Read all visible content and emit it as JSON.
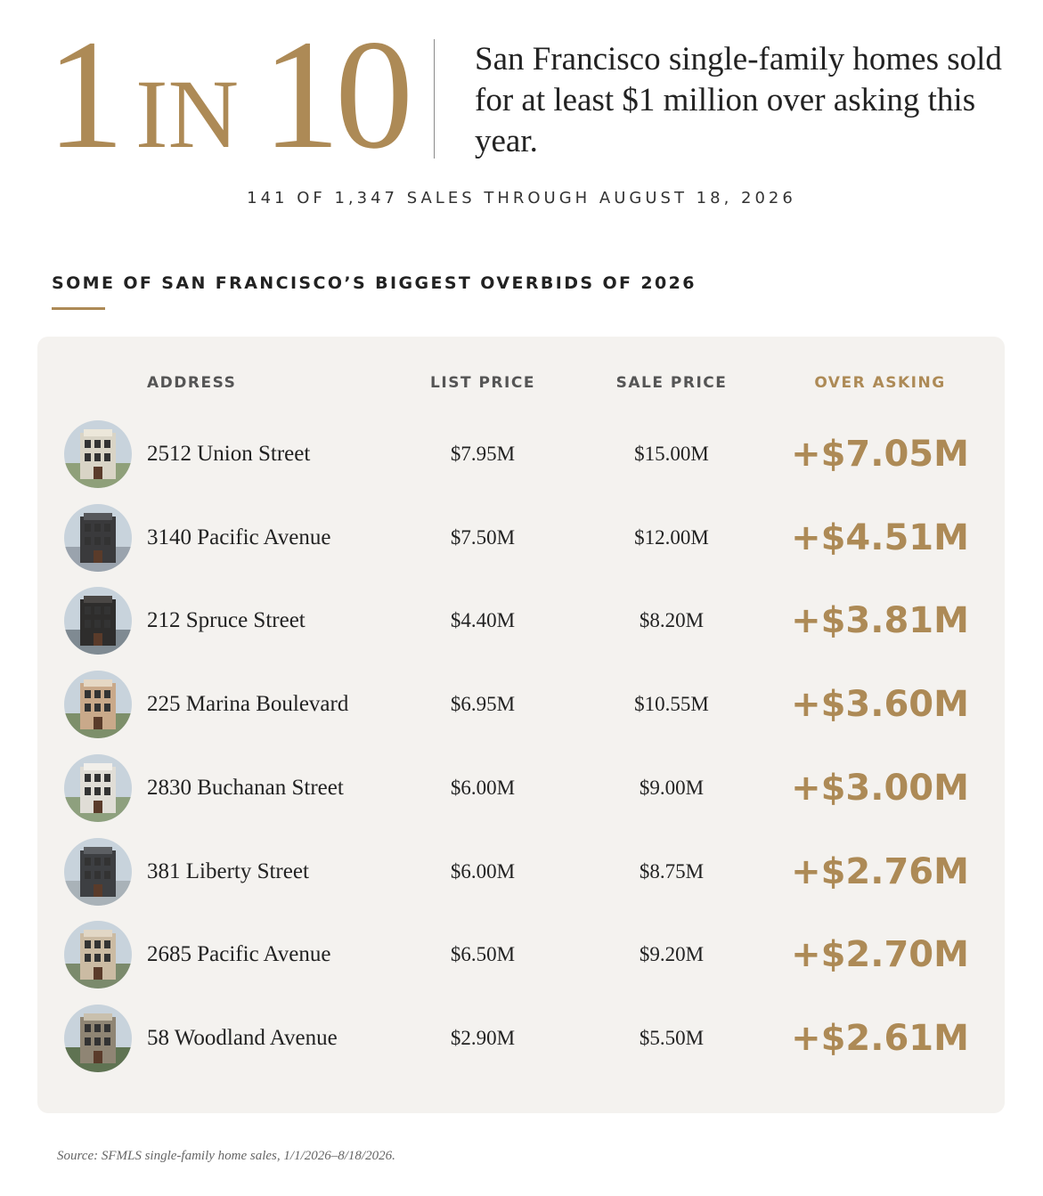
{
  "header": {
    "stat": [
      "1",
      "IN",
      "10"
    ],
    "statement": "San Francisco single-family homes sold for at least $1 million over asking this year.",
    "subtitle": "141 OF 1,347 SALES THROUGH AUGUST 18, 2026"
  },
  "section": {
    "title": "SOME OF SAN FRANCISCO’S BIGGEST OVERBIDS OF 2026"
  },
  "table": {
    "columns": [
      "ADDRESS",
      "LIST PRICE",
      "SALE PRICE",
      "OVER ASKING"
    ],
    "rows": [
      [
        "2512 Union Street",
        "$7.95M",
        "$15.00M",
        "+$7.05M"
      ],
      [
        "3140 Pacific Avenue",
        "$7.50M",
        "$12.00M",
        "+$4.51M"
      ],
      [
        "212 Spruce Street",
        "$4.40M",
        "$8.20M",
        "+$3.81M"
      ],
      [
        "225 Marina Boulevard",
        "$6.95M",
        "$10.55M",
        "+$3.60M"
      ],
      [
        "2830 Buchanan Street",
        "$6.00M",
        "$9.00M",
        "+$3.00M"
      ],
      [
        "381 Liberty Street",
        "$6.00M",
        "$8.75M",
        "+$2.76M"
      ],
      [
        "2685 Pacific Avenue",
        "$6.50M",
        "$9.20M",
        "+$2.70M"
      ],
      [
        "58 Woodland Avenue",
        "$2.90M",
        "$5.50M",
        "+$2.61M"
      ]
    ]
  },
  "footer": {
    "source": "Source: SFMLS single-family home sales, 1/1/2026–8/18/2026."
  }
}
